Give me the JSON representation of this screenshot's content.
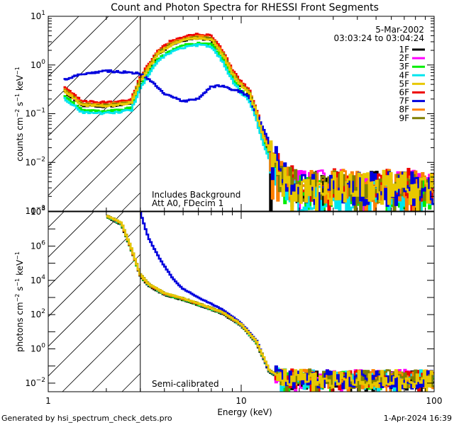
{
  "chart_data": {
    "type": "line",
    "title": "Count and Photon Spectra for RHESSI Front Segments",
    "xlabel": "Energy (keV)",
    "xscale": "log",
    "xlim": [
      1,
      100
    ],
    "x_ticks": [
      {
        "value": 1,
        "label": "1"
      },
      {
        "value": 10,
        "label": "10"
      },
      {
        "value": 100,
        "label": "100"
      }
    ],
    "footer_left": "Generated by hsi_spectrum_check_dets.pro",
    "footer_right": "1-Apr-2024 16:39",
    "date": "5-Mar-2002",
    "time_range": "03:03:24 to 03:04:24",
    "legend": [
      {
        "label": "1F",
        "color": "#000000"
      },
      {
        "label": "2F",
        "color": "#ff00ff"
      },
      {
        "label": "3F",
        "color": "#00ee00"
      },
      {
        "label": "4F",
        "color": "#00e5ee"
      },
      {
        "label": "5F",
        "color": "#e8c800"
      },
      {
        "label": "6F",
        "color": "#ee0000"
      },
      {
        "label": "7F",
        "color": "#0000dd"
      },
      {
        "label": "8F",
        "color": "#ff8000"
      },
      {
        "label": "9F",
        "color": "#7f7f00"
      }
    ],
    "panels": [
      {
        "name": "count-spectrum",
        "ylabel": "counts cm^-2 s^-1 keV^-1",
        "ylabel_parts": {
          "pre": "counts cm",
          "a": "−2",
          "mid": " s",
          "b": "−1",
          "post": " keV",
          "c": "−1"
        },
        "ylim_log10": [
          -3,
          1
        ],
        "y_ticks": [
          {
            "exp": 1,
            "base": "10",
            "sup": "1"
          },
          {
            "exp": 0,
            "base": "10",
            "sup": "0"
          },
          {
            "exp": -1,
            "base": "10",
            "sup": "−1"
          },
          {
            "exp": -2,
            "base": "10",
            "sup": "−2"
          },
          {
            "exp": -3,
            "base": "10",
            "sup": "−3"
          }
        ],
        "hatched_below_keV": 3,
        "annotations": [
          "Includes Background",
          "Att A0, FDecim 1"
        ],
        "anchors": [
          [
            1.2,
            -0.55
          ],
          [
            1.5,
            -0.85
          ],
          [
            1.9,
            -0.87
          ],
          [
            2.3,
            -0.85
          ],
          [
            2.7,
            -0.8
          ],
          [
            3.0,
            -0.35
          ],
          [
            3.3,
            -0.1
          ],
          [
            3.7,
            0.2
          ],
          [
            4.3,
            0.38
          ],
          [
            5.0,
            0.48
          ],
          [
            6.0,
            0.53
          ],
          [
            7.0,
            0.5
          ],
          [
            8.0,
            0.2
          ],
          [
            9.0,
            -0.2
          ],
          [
            10.0,
            -0.45
          ],
          [
            11.0,
            -0.6
          ],
          [
            12.0,
            -1.0
          ],
          [
            13.0,
            -1.5
          ],
          [
            14.0,
            -1.8
          ],
          [
            15.0,
            -2.2
          ],
          [
            17.0,
            -2.45
          ],
          [
            20.0,
            -2.55
          ],
          [
            100.0,
            -2.55
          ]
        ],
        "detector_offsets": [
          0.02,
          0.05,
          -0.08,
          -0.12,
          0.03,
          0.1,
          0.0,
          0.06,
          0.04
        ],
        "detector7_anchors": [
          [
            1.2,
            -0.3
          ],
          [
            1.5,
            -0.18
          ],
          [
            2.0,
            -0.12
          ],
          [
            2.5,
            -0.15
          ],
          [
            3.0,
            -0.18
          ],
          [
            3.5,
            -0.35
          ],
          [
            4.0,
            -0.6
          ],
          [
            5.0,
            -0.75
          ],
          [
            6.0,
            -0.7
          ],
          [
            7.0,
            -0.45
          ],
          [
            8.0,
            -0.42
          ],
          [
            9.0,
            -0.5
          ],
          [
            10.0,
            -0.55
          ],
          [
            11.0,
            -0.65
          ],
          [
            12.0,
            -1.0
          ],
          [
            14.0,
            -1.6
          ],
          [
            17.0,
            -2.25
          ],
          [
            20.0,
            -2.55
          ],
          [
            100.0,
            -2.55
          ]
        ],
        "noise_above_keV": 14,
        "noise_amplitude": 0.35
      },
      {
        "name": "photon-spectrum",
        "ylabel": "photons cm^-2 s^-1 keV^-1",
        "ylabel_parts": {
          "pre": "photons cm",
          "a": "−2",
          "mid": " s",
          "b": "−1",
          "post": " keV",
          "c": "−1"
        },
        "ylim_log10": [
          -2.5,
          8
        ],
        "y_ticks": [
          {
            "exp": 8,
            "base": "10",
            "sup": "8"
          },
          {
            "exp": 6,
            "base": "10",
            "sup": "6"
          },
          {
            "exp": 4,
            "base": "10",
            "sup": "4"
          },
          {
            "exp": 2,
            "base": "10",
            "sup": "2"
          },
          {
            "exp": 0,
            "base": "10",
            "sup": "0"
          },
          {
            "exp": -2,
            "base": "10",
            "sup": "−2"
          }
        ],
        "hatched_below_keV": 3,
        "annotations": [
          "Semi-calibrated"
        ],
        "anchors": [
          [
            2.0,
            7.75
          ],
          [
            2.4,
            7.3
          ],
          [
            2.7,
            5.8
          ],
          [
            3.0,
            4.3
          ],
          [
            3.3,
            3.75
          ],
          [
            4.0,
            3.2
          ],
          [
            5.0,
            2.9
          ],
          [
            6.0,
            2.6
          ],
          [
            8.0,
            2.1
          ],
          [
            10.0,
            1.4
          ],
          [
            12.0,
            0.4
          ],
          [
            14.0,
            -1.3
          ],
          [
            16.0,
            -1.7
          ],
          [
            20.0,
            -1.8
          ],
          [
            100.0,
            -1.8
          ]
        ],
        "detector_offsets": [
          -0.05,
          0.03,
          -0.02,
          0.01,
          0.05,
          0.02,
          0.0,
          0.04,
          0.06
        ],
        "detector7_anchors": [
          [
            3.0,
            7.95
          ],
          [
            3.3,
            6.5
          ],
          [
            3.8,
            5.2
          ],
          [
            4.5,
            4.0
          ],
          [
            5.0,
            3.5
          ],
          [
            6.0,
            3.0
          ],
          [
            8.0,
            2.3
          ],
          [
            10.0,
            1.5
          ],
          [
            12.0,
            0.5
          ],
          [
            14.0,
            -1.3
          ],
          [
            16.0,
            -1.7
          ],
          [
            20.0,
            -1.8
          ],
          [
            100.0,
            -1.8
          ]
        ],
        "noise_above_keV": 15,
        "noise_amplitude": 0.55
      }
    ]
  }
}
